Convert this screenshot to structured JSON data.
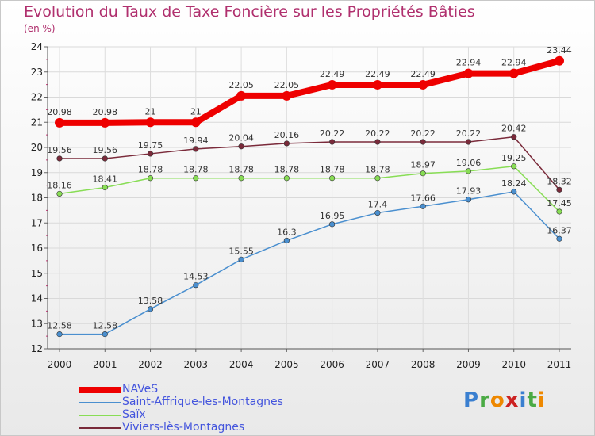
{
  "chart_data": {
    "type": "line",
    "title": "Evolution du Taux de Taxe Foncière sur les Propriétés Bâties",
    "subtitle": "(en %)",
    "x": [
      "2000",
      "2001",
      "2002",
      "2003",
      "2004",
      "2005",
      "2006",
      "2007",
      "2008",
      "2009",
      "2010",
      "2011"
    ],
    "yticks": [
      "12",
      "13",
      "14",
      "15",
      "16",
      "17",
      "18",
      "19",
      "20",
      "21",
      "22",
      "23",
      "24"
    ],
    "ylim": [
      12,
      24
    ],
    "grid": true,
    "legend_position": "bottom-left",
    "series": [
      {
        "name": "NAVeS",
        "color": "#ee0000",
        "values": [
          20.98,
          20.98,
          21,
          21,
          22.05,
          22.05,
          22.49,
          22.49,
          22.49,
          22.94,
          22.94,
          23.44
        ],
        "labels": [
          "20.98",
          "20.98",
          "21",
          "21",
          "22.05",
          "22.05",
          "22.49",
          "22.49",
          "22.49",
          "22.94",
          "22.94",
          "23.44"
        ]
      },
      {
        "name": "Saint-Affrique-les-Montagnes",
        "color": "#4a8fcf",
        "values": [
          12.58,
          12.58,
          13.58,
          14.53,
          15.55,
          16.3,
          16.95,
          17.4,
          17.66,
          17.93,
          18.24,
          16.37
        ],
        "labels": [
          "12.58",
          "12.58",
          "13.58",
          "14.53",
          "15.55",
          "16.3",
          "16.95",
          "17.4",
          "17.66",
          "17.93",
          "18.24",
          "16.37"
        ]
      },
      {
        "name": "Saïx",
        "color": "#88dd55",
        "values": [
          18.16,
          18.41,
          18.78,
          18.78,
          18.78,
          18.78,
          18.78,
          18.78,
          18.97,
          19.06,
          19.25,
          17.45
        ],
        "labels": [
          "18.16",
          "18.41",
          "18.78",
          "18.78",
          "18.78",
          "18.78",
          "18.78",
          "18.78",
          "18.97",
          "19.06",
          "19.25",
          "17.45"
        ]
      },
      {
        "name": "Viviers-lès-Montagnes",
        "color": "#7a2a3a",
        "values": [
          19.56,
          19.56,
          19.75,
          19.94,
          20.04,
          20.16,
          20.22,
          20.22,
          20.22,
          20.22,
          20.42,
          18.32
        ],
        "labels": [
          "19.56",
          "19.56",
          "19.75",
          "19.94",
          "20.04",
          "20.16",
          "20.22",
          "20.22",
          "20.22",
          "20.22",
          "20.42",
          "18.32"
        ]
      }
    ]
  },
  "logo": {
    "letters": [
      "P",
      "r",
      "o",
      "x",
      "i",
      "t",
      "i"
    ],
    "colors": [
      "#3a7fd0",
      "#4aaa44",
      "#ee8800",
      "#cc2222",
      "#3a7fd0",
      "#4aaa44",
      "#ee8800"
    ]
  }
}
